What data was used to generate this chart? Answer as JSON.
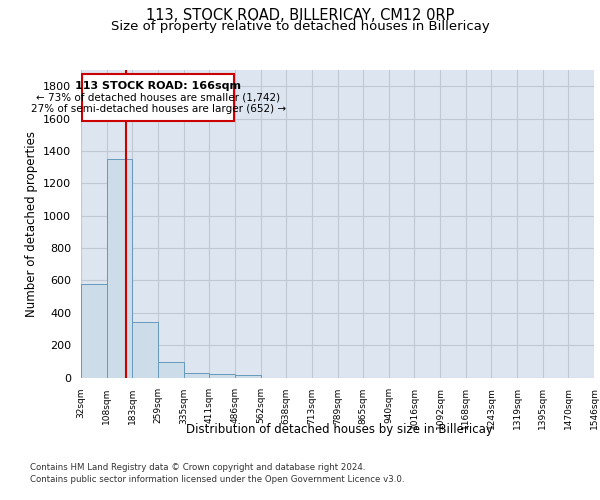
{
  "title": "113, STOCK ROAD, BILLERICAY, CM12 0RP",
  "subtitle": "Size of property relative to detached houses in Billericay",
  "xlabel": "Distribution of detached houses by size in Billericay",
  "ylabel": "Number of detached properties",
  "bar_edges": [
    32,
    108,
    183,
    259,
    335,
    411,
    486,
    562,
    638,
    713,
    789,
    865,
    940,
    1016,
    1092,
    1168,
    1243,
    1319,
    1395,
    1470,
    1546
  ],
  "bar_heights": [
    575,
    1350,
    345,
    95,
    30,
    22,
    18,
    0,
    0,
    0,
    0,
    0,
    0,
    0,
    0,
    0,
    0,
    0,
    0,
    0
  ],
  "bar_color": "#ccdce8",
  "bar_edgecolor": "#6699bb",
  "bar_linewidth": 0.7,
  "redline_x": 166,
  "ylim": [
    0,
    1900
  ],
  "yticks": [
    0,
    200,
    400,
    600,
    800,
    1000,
    1200,
    1400,
    1600,
    1800
  ],
  "grid_color": "#c0c8d4",
  "bg_color": "#dde6f0",
  "annotation_title": "113 STOCK ROAD: 166sqm",
  "annotation_line1": "← 73% of detached houses are smaller (1,742)",
  "annotation_line2": "27% of semi-detached houses are larger (652) →",
  "annotation_box_color": "#ffffff",
  "annotation_border_color": "#cc0000",
  "footer1": "Contains HM Land Registry data © Crown copyright and database right 2024.",
  "footer2": "Contains public sector information licensed under the Open Government Licence v3.0.",
  "title_fontsize": 10.5,
  "subtitle_fontsize": 9.5,
  "tick_labels": [
    "32sqm",
    "108sqm",
    "183sqm",
    "259sqm",
    "335sqm",
    "411sqm",
    "486sqm",
    "562sqm",
    "638sqm",
    "713sqm",
    "789sqm",
    "865sqm",
    "940sqm",
    "1016sqm",
    "1092sqm",
    "1168sqm",
    "1243sqm",
    "1319sqm",
    "1395sqm",
    "1470sqm",
    "1546sqm"
  ]
}
